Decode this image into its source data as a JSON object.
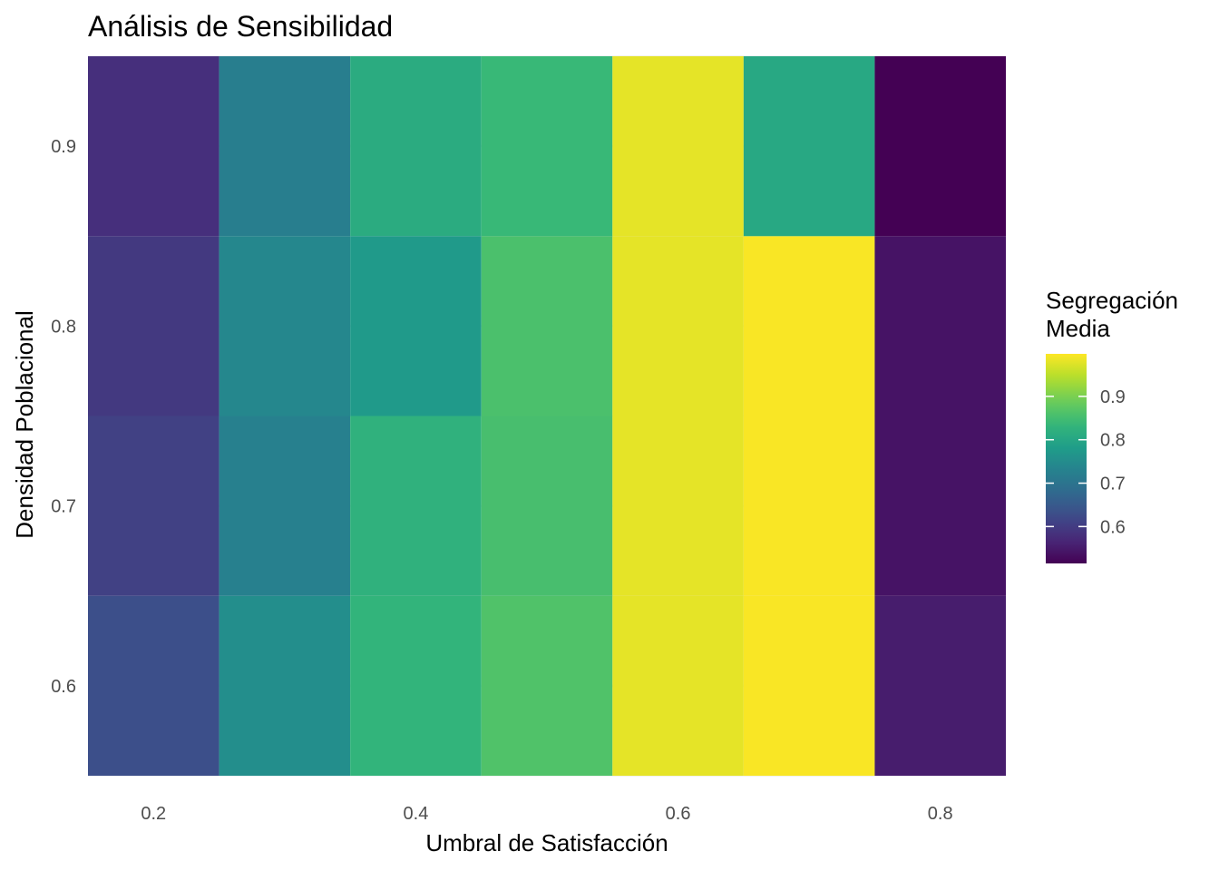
{
  "chart_data": {
    "type": "heatmap",
    "title": "Análisis de Sensibilidad",
    "xlabel": "Umbral de Satisfacción",
    "ylabel": "Densidad Poblacional",
    "x": [
      0.2,
      0.3,
      0.4,
      0.5,
      0.6,
      0.7,
      0.8
    ],
    "y": [
      0.6,
      0.7,
      0.8,
      0.9
    ],
    "x_ticks": [
      "0.2",
      "0.4",
      "0.6",
      "0.8"
    ],
    "x_tick_values": [
      0.2,
      0.4,
      0.6,
      0.8
    ],
    "y_ticks": [
      "0.6",
      "0.7",
      "0.8",
      "0.9"
    ],
    "y_tick_values": [
      0.6,
      0.7,
      0.8,
      0.9
    ],
    "xlim": [
      0.15,
      0.85
    ],
    "ylim": [
      0.55,
      0.95
    ],
    "grid": true,
    "values": [
      [
        0.632,
        0.752,
        0.83,
        0.863,
        0.98,
        0.995,
        0.553
      ],
      [
        0.608,
        0.725,
        0.825,
        0.855,
        0.98,
        0.995,
        0.54
      ],
      [
        0.595,
        0.74,
        0.775,
        0.858,
        0.98,
        0.995,
        0.54
      ],
      [
        0.58,
        0.722,
        0.812,
        0.84,
        0.98,
        0.805,
        0.515
      ]
    ],
    "legend": {
      "title_lines": [
        "Segregación",
        "Media"
      ],
      "ticks": [
        "0.6",
        "0.7",
        "0.8",
        "0.9"
      ],
      "tick_values": [
        0.6,
        0.7,
        0.8,
        0.9
      ],
      "range": [
        0.515,
        0.998
      ],
      "placement": "right"
    },
    "colormap": "viridis"
  }
}
